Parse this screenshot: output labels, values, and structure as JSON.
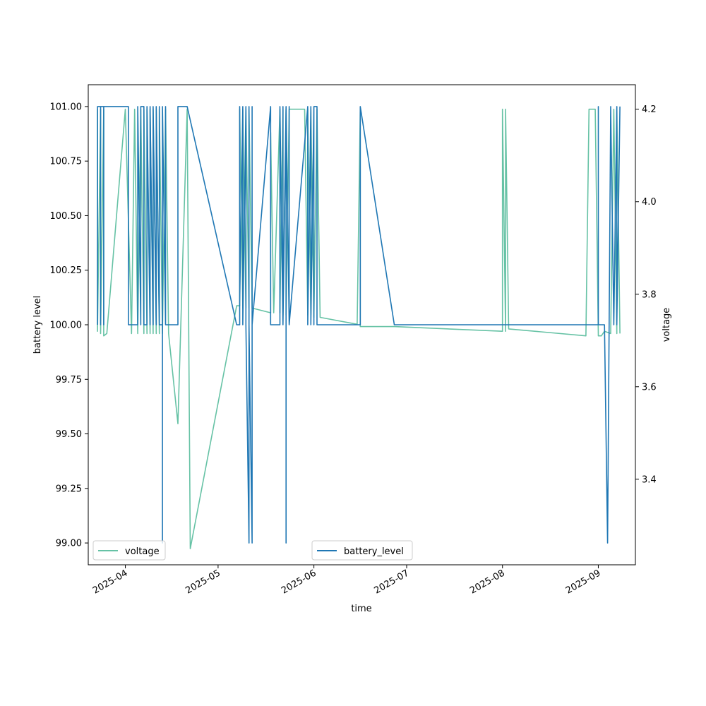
{
  "chart_data": {
    "type": "line",
    "xlabel": "time",
    "ylabel_left": "battery level",
    "ylabel_right": "voltage",
    "xlim": [
      "2025-03-20",
      "2025-09-13"
    ],
    "ylim_left": [
      98.9,
      101.1
    ],
    "ylim_right": [
      3.215,
      4.253
    ],
    "x_ticks": [
      {
        "label": "2025-04",
        "date": "2025-04-01"
      },
      {
        "label": "2025-05",
        "date": "2025-05-01"
      },
      {
        "label": "2025-06",
        "date": "2025-06-01"
      },
      {
        "label": "2025-07",
        "date": "2025-07-01"
      },
      {
        "label": "2025-08",
        "date": "2025-08-01"
      },
      {
        "label": "2025-09",
        "date": "2025-09-01"
      }
    ],
    "y_ticks_left": [
      {
        "label": "99.00",
        "value": 99.0
      },
      {
        "label": "99.25",
        "value": 99.25
      },
      {
        "label": "99.50",
        "value": 99.5
      },
      {
        "label": "99.75",
        "value": 99.75
      },
      {
        "label": "100.00",
        "value": 100.0
      },
      {
        "label": "100.25",
        "value": 100.25
      },
      {
        "label": "100.50",
        "value": 100.5
      },
      {
        "label": "100.75",
        "value": 100.75
      },
      {
        "label": "101.00",
        "value": 101.0
      }
    ],
    "y_ticks_right": [
      {
        "label": "3.4",
        "value": 3.4
      },
      {
        "label": "3.6",
        "value": 3.6
      },
      {
        "label": "3.8",
        "value": 3.8
      },
      {
        "label": "4.0",
        "value": 4.0
      },
      {
        "label": "4.2",
        "value": 4.2
      }
    ],
    "series": [
      {
        "name": "battery_level",
        "axis": "left",
        "color": "#1f77b4",
        "legend_position": "lower-center",
        "points": [
          [
            "2025-03-23",
            100.0
          ],
          [
            "2025-03-23",
            101.0
          ],
          [
            "2025-03-24",
            101.0
          ],
          [
            "2025-03-24",
            100.0
          ],
          [
            "2025-03-24",
            101.0
          ],
          [
            "2025-03-25",
            101.0
          ],
          [
            "2025-03-25",
            100.0
          ],
          [
            "2025-03-25",
            101.0
          ],
          [
            "2025-04-02",
            101.0
          ],
          [
            "2025-04-02",
            100.0
          ],
          [
            "2025-04-05",
            100.0
          ],
          [
            "2025-04-05",
            101.0
          ],
          [
            "2025-04-06",
            100.0
          ],
          [
            "2025-04-06",
            101.0
          ],
          [
            "2025-04-07",
            101.0
          ],
          [
            "2025-04-07",
            100.0
          ],
          [
            "2025-04-08",
            100.0
          ],
          [
            "2025-04-08",
            101.0
          ],
          [
            "2025-04-09",
            100.0
          ],
          [
            "2025-04-09",
            101.0
          ],
          [
            "2025-04-10",
            100.0
          ],
          [
            "2025-04-10",
            101.0
          ],
          [
            "2025-04-11",
            100.0
          ],
          [
            "2025-04-11",
            101.0
          ],
          [
            "2025-04-12",
            100.0
          ],
          [
            "2025-04-12",
            101.0
          ],
          [
            "2025-04-12",
            100.0
          ],
          [
            "2025-04-13",
            100.0
          ],
          [
            "2025-04-13",
            99.0
          ],
          [
            "2025-04-13",
            101.0
          ],
          [
            "2025-04-14",
            100.0
          ],
          [
            "2025-04-14",
            101.0
          ],
          [
            "2025-04-14",
            100.0
          ],
          [
            "2025-04-18",
            100.0
          ],
          [
            "2025-04-18",
            101.0
          ],
          [
            "2025-04-21",
            101.0
          ],
          [
            "2025-05-07",
            100.0
          ],
          [
            "2025-05-08",
            100.0
          ],
          [
            "2025-05-08",
            101.0
          ],
          [
            "2025-05-08",
            100.1
          ],
          [
            "2025-05-09",
            101.0
          ],
          [
            "2025-05-09",
            100.0
          ],
          [
            "2025-05-10",
            101.0
          ],
          [
            "2025-05-10",
            100.0
          ],
          [
            "2025-05-11",
            99.0
          ],
          [
            "2025-05-11",
            101.0
          ],
          [
            "2025-05-11",
            100.0
          ],
          [
            "2025-05-12",
            99.0
          ],
          [
            "2025-05-12",
            101.0
          ],
          [
            "2025-05-12",
            100.0
          ],
          [
            "2025-05-18",
            101.0
          ],
          [
            "2025-05-18",
            100.0
          ],
          [
            "2025-05-21",
            100.0
          ],
          [
            "2025-05-21",
            101.0
          ],
          [
            "2025-05-22",
            100.0
          ],
          [
            "2025-05-22",
            101.0
          ],
          [
            "2025-05-22",
            100.0
          ],
          [
            "2025-05-23",
            101.0
          ],
          [
            "2025-05-23",
            99.0
          ],
          [
            "2025-05-23",
            101.0
          ],
          [
            "2025-05-24",
            100.0
          ],
          [
            "2025-05-24",
            101.0
          ],
          [
            "2025-05-24",
            100.0
          ],
          [
            "2025-05-30",
            101.0
          ],
          [
            "2025-05-30",
            100.0
          ],
          [
            "2025-05-31",
            101.0
          ],
          [
            "2025-05-31",
            100.0
          ],
          [
            "2025-06-01",
            101.0
          ],
          [
            "2025-06-01",
            100.0
          ],
          [
            "2025-06-01",
            101.0
          ],
          [
            "2025-06-02",
            101.0
          ],
          [
            "2025-06-02",
            100.0
          ],
          [
            "2025-06-16",
            100.0
          ],
          [
            "2025-06-16",
            101.0
          ],
          [
            "2025-06-27",
            100.0
          ],
          [
            "2025-09-01",
            100.0
          ],
          [
            "2025-09-01",
            101.0
          ],
          [
            "2025-09-01",
            100.0
          ],
          [
            "2025-09-03",
            100.0
          ],
          [
            "2025-09-04",
            99.0
          ],
          [
            "2025-09-05",
            101.0
          ],
          [
            "2025-09-06",
            100.0
          ],
          [
            "2025-09-07",
            101.0
          ],
          [
            "2025-09-07",
            100.0
          ],
          [
            "2025-09-08",
            101.0
          ]
        ]
      },
      {
        "name": "voltage",
        "axis": "right",
        "color": "#66c2a5",
        "legend_position": "lower-left",
        "points": [
          [
            "2025-03-23",
            4.2
          ],
          [
            "2025-03-23",
            3.72
          ],
          [
            "2025-03-24",
            4.2
          ],
          [
            "2025-03-24",
            3.715
          ],
          [
            "2025-03-25",
            4.2
          ],
          [
            "2025-03-25",
            3.71
          ],
          [
            "2025-03-26",
            3.715
          ],
          [
            "2025-04-01",
            4.2
          ],
          [
            "2025-04-03",
            3.715
          ],
          [
            "2025-04-04",
            4.2
          ],
          [
            "2025-04-05",
            3.715
          ],
          [
            "2025-04-06",
            4.2
          ],
          [
            "2025-04-07",
            3.715
          ],
          [
            "2025-04-07",
            4.2
          ],
          [
            "2025-04-08",
            3.715
          ],
          [
            "2025-04-08",
            4.2
          ],
          [
            "2025-04-09",
            3.715
          ],
          [
            "2025-04-09",
            4.2
          ],
          [
            "2025-04-10",
            3.715
          ],
          [
            "2025-04-10",
            4.2
          ],
          [
            "2025-04-11",
            3.715
          ],
          [
            "2025-04-11",
            4.2
          ],
          [
            "2025-04-12",
            3.715
          ],
          [
            "2025-04-12",
            4.2
          ],
          [
            "2025-04-13",
            3.715
          ],
          [
            "2025-04-14",
            4.2
          ],
          [
            "2025-04-15",
            3.715
          ],
          [
            "2025-04-18",
            3.52
          ],
          [
            "2025-04-21",
            4.2
          ],
          [
            "2025-04-22",
            3.25
          ],
          [
            "2025-05-07",
            3.775
          ],
          [
            "2025-05-08",
            3.775
          ],
          [
            "2025-05-08",
            4.2
          ],
          [
            "2025-05-09",
            3.77
          ],
          [
            "2025-05-09",
            4.2
          ],
          [
            "2025-05-10",
            3.77
          ],
          [
            "2025-05-10",
            4.2
          ],
          [
            "2025-05-11",
            3.77
          ],
          [
            "2025-05-11",
            4.2
          ],
          [
            "2025-05-12",
            3.77
          ],
          [
            "2025-05-18",
            3.76
          ],
          [
            "2025-05-18",
            4.15
          ],
          [
            "2025-05-19",
            3.76
          ],
          [
            "2025-05-21",
            4.2
          ],
          [
            "2025-05-21",
            3.76
          ],
          [
            "2025-05-22",
            4.2
          ],
          [
            "2025-05-22",
            3.755
          ],
          [
            "2025-05-23",
            4.2
          ],
          [
            "2025-05-23",
            3.755
          ],
          [
            "2025-05-24",
            4.2
          ],
          [
            "2025-05-29",
            4.2
          ],
          [
            "2025-05-30",
            3.755
          ],
          [
            "2025-05-30",
            4.2
          ],
          [
            "2025-05-31",
            3.755
          ],
          [
            "2025-05-31",
            4.2
          ],
          [
            "2025-06-01",
            3.75
          ],
          [
            "2025-06-02",
            4.2
          ],
          [
            "2025-06-03",
            3.75
          ],
          [
            "2025-06-15",
            3.735
          ],
          [
            "2025-06-16",
            4.2
          ],
          [
            "2025-06-16",
            3.73
          ],
          [
            "2025-06-27",
            3.73
          ],
          [
            "2025-08-01",
            3.72
          ],
          [
            "2025-08-01",
            4.2
          ],
          [
            "2025-08-02",
            3.72
          ],
          [
            "2025-08-02",
            4.2
          ],
          [
            "2025-08-03",
            3.725
          ],
          [
            "2025-08-28",
            3.71
          ],
          [
            "2025-08-29",
            4.2
          ],
          [
            "2025-08-31",
            4.2
          ],
          [
            "2025-09-01",
            3.71
          ],
          [
            "2025-09-02",
            3.71
          ],
          [
            "2025-09-03",
            3.72
          ],
          [
            "2025-09-05",
            3.715
          ],
          [
            "2025-09-06",
            4.2
          ],
          [
            "2025-09-07",
            3.715
          ],
          [
            "2025-09-07",
            4.2
          ],
          [
            "2025-09-08",
            3.715
          ]
        ]
      }
    ]
  }
}
